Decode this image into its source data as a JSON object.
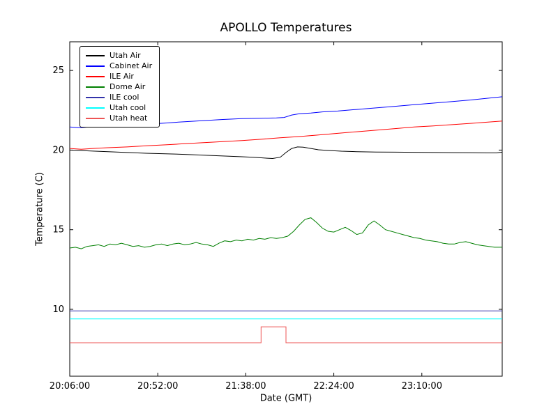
{
  "chart_data": {
    "type": "line",
    "title": "APOLLO Temperatures",
    "xlabel": "Date (GMT)",
    "ylabel": "Temperature (C)",
    "x_unit": "minutes after 20:06:00 GMT",
    "xlim": [
      0,
      226
    ],
    "ylim": [
      5.8,
      26.8
    ],
    "y_ticks": [
      10,
      15,
      20,
      25
    ],
    "x_ticks": [
      {
        "t": 0,
        "label": "20:06:00"
      },
      {
        "t": 46,
        "label": "20:52:00"
      },
      {
        "t": 92,
        "label": "21:38:00"
      },
      {
        "t": 138,
        "label": "22:24:00"
      },
      {
        "t": 184,
        "label": "23:10:00"
      }
    ],
    "grid": false,
    "legend_position": "upper left",
    "series": [
      {
        "name": "Utah Air",
        "color": "#000000",
        "points": [
          [
            0,
            20.0
          ],
          [
            10,
            19.95
          ],
          [
            20,
            19.9
          ],
          [
            30,
            19.85
          ],
          [
            40,
            19.8
          ],
          [
            50,
            19.77
          ],
          [
            60,
            19.73
          ],
          [
            70,
            19.68
          ],
          [
            80,
            19.63
          ],
          [
            90,
            19.58
          ],
          [
            96,
            19.55
          ],
          [
            102,
            19.5
          ],
          [
            106,
            19.47
          ],
          [
            110,
            19.55
          ],
          [
            113,
            19.85
          ],
          [
            116,
            20.1
          ],
          [
            119,
            20.2
          ],
          [
            122,
            20.18
          ],
          [
            126,
            20.1
          ],
          [
            130,
            20.02
          ],
          [
            136,
            19.97
          ],
          [
            142,
            19.93
          ],
          [
            150,
            19.9
          ],
          [
            160,
            19.88
          ],
          [
            170,
            19.87
          ],
          [
            180,
            19.86
          ],
          [
            190,
            19.85
          ],
          [
            200,
            19.84
          ],
          [
            210,
            19.83
          ],
          [
            218,
            19.82
          ],
          [
            223,
            19.82
          ],
          [
            226,
            19.87
          ]
        ]
      },
      {
        "name": "Cabinet Air",
        "color": "#0000ff",
        "points": [
          [
            0,
            21.45
          ],
          [
            5,
            21.4
          ],
          [
            10,
            21.45
          ],
          [
            20,
            21.5
          ],
          [
            30,
            21.55
          ],
          [
            40,
            21.62
          ],
          [
            50,
            21.7
          ],
          [
            60,
            21.78
          ],
          [
            70,
            21.85
          ],
          [
            80,
            21.92
          ],
          [
            90,
            21.98
          ],
          [
            100,
            22.0
          ],
          [
            108,
            22.02
          ],
          [
            112,
            22.05
          ],
          [
            116,
            22.2
          ],
          [
            120,
            22.28
          ],
          [
            126,
            22.33
          ],
          [
            132,
            22.4
          ],
          [
            140,
            22.45
          ],
          [
            150,
            22.55
          ],
          [
            160,
            22.65
          ],
          [
            170,
            22.75
          ],
          [
            180,
            22.85
          ],
          [
            190,
            22.95
          ],
          [
            200,
            23.05
          ],
          [
            210,
            23.15
          ],
          [
            218,
            23.25
          ],
          [
            226,
            23.35
          ]
        ]
      },
      {
        "name": "ILE Air",
        "color": "#ff0000",
        "points": [
          [
            0,
            20.1
          ],
          [
            6,
            20.05
          ],
          [
            12,
            20.1
          ],
          [
            20,
            20.15
          ],
          [
            30,
            20.2
          ],
          [
            40,
            20.27
          ],
          [
            50,
            20.33
          ],
          [
            60,
            20.4
          ],
          [
            70,
            20.47
          ],
          [
            80,
            20.53
          ],
          [
            90,
            20.6
          ],
          [
            100,
            20.68
          ],
          [
            110,
            20.77
          ],
          [
            120,
            20.85
          ],
          [
            130,
            20.95
          ],
          [
            140,
            21.05
          ],
          [
            150,
            21.15
          ],
          [
            160,
            21.25
          ],
          [
            170,
            21.35
          ],
          [
            180,
            21.45
          ],
          [
            190,
            21.52
          ],
          [
            200,
            21.6
          ],
          [
            210,
            21.68
          ],
          [
            218,
            21.75
          ],
          [
            226,
            21.82
          ]
        ]
      },
      {
        "name": "Dome Air",
        "color": "#007f00",
        "points": [
          [
            0,
            13.85
          ],
          [
            3,
            13.9
          ],
          [
            6,
            13.8
          ],
          [
            9,
            13.95
          ],
          [
            12,
            14.0
          ],
          [
            15,
            14.05
          ],
          [
            18,
            13.95
          ],
          [
            21,
            14.1
          ],
          [
            24,
            14.05
          ],
          [
            27,
            14.15
          ],
          [
            30,
            14.05
          ],
          [
            33,
            13.95
          ],
          [
            36,
            14.0
          ],
          [
            39,
            13.9
          ],
          [
            42,
            13.95
          ],
          [
            45,
            14.05
          ],
          [
            48,
            14.1
          ],
          [
            51,
            14.0
          ],
          [
            54,
            14.1
          ],
          [
            57,
            14.15
          ],
          [
            60,
            14.05
          ],
          [
            63,
            14.1
          ],
          [
            66,
            14.2
          ],
          [
            69,
            14.1
          ],
          [
            72,
            14.05
          ],
          [
            75,
            13.95
          ],
          [
            78,
            14.15
          ],
          [
            81,
            14.3
          ],
          [
            84,
            14.25
          ],
          [
            87,
            14.35
          ],
          [
            90,
            14.3
          ],
          [
            93,
            14.4
          ],
          [
            96,
            14.35
          ],
          [
            99,
            14.45
          ],
          [
            102,
            14.4
          ],
          [
            105,
            14.5
          ],
          [
            108,
            14.45
          ],
          [
            111,
            14.5
          ],
          [
            114,
            14.6
          ],
          [
            117,
            14.9
          ],
          [
            120,
            15.3
          ],
          [
            123,
            15.65
          ],
          [
            126,
            15.75
          ],
          [
            129,
            15.45
          ],
          [
            132,
            15.1
          ],
          [
            135,
            14.9
          ],
          [
            138,
            14.85
          ],
          [
            141,
            15.0
          ],
          [
            144,
            15.15
          ],
          [
            147,
            14.95
          ],
          [
            150,
            14.7
          ],
          [
            153,
            14.8
          ],
          [
            156,
            15.3
          ],
          [
            159,
            15.55
          ],
          [
            162,
            15.3
          ],
          [
            165,
            15.0
          ],
          [
            168,
            14.9
          ],
          [
            171,
            14.8
          ],
          [
            174,
            14.7
          ],
          [
            177,
            14.6
          ],
          [
            180,
            14.5
          ],
          [
            183,
            14.45
          ],
          [
            186,
            14.35
          ],
          [
            189,
            14.3
          ],
          [
            192,
            14.25
          ],
          [
            195,
            14.15
          ],
          [
            198,
            14.1
          ],
          [
            201,
            14.1
          ],
          [
            204,
            14.2
          ],
          [
            207,
            14.25
          ],
          [
            210,
            14.15
          ],
          [
            213,
            14.05
          ],
          [
            216,
            14.0
          ],
          [
            219,
            13.95
          ],
          [
            222,
            13.9
          ],
          [
            226,
            13.9
          ]
        ]
      },
      {
        "name": "ILE cool",
        "color": "#3333aa",
        "points": [
          [
            0,
            9.9
          ],
          [
            226,
            9.9
          ]
        ]
      },
      {
        "name": "Utah cool",
        "color": "#00ffff",
        "points": [
          [
            0,
            9.4
          ],
          [
            226,
            9.4
          ]
        ]
      },
      {
        "name": "Utah heat",
        "color": "#ee5555",
        "points": [
          [
            0,
            7.9
          ],
          [
            100,
            7.9
          ],
          [
            100,
            8.9
          ],
          [
            113,
            8.9
          ],
          [
            113,
            7.9
          ],
          [
            226,
            7.9
          ]
        ]
      }
    ]
  }
}
